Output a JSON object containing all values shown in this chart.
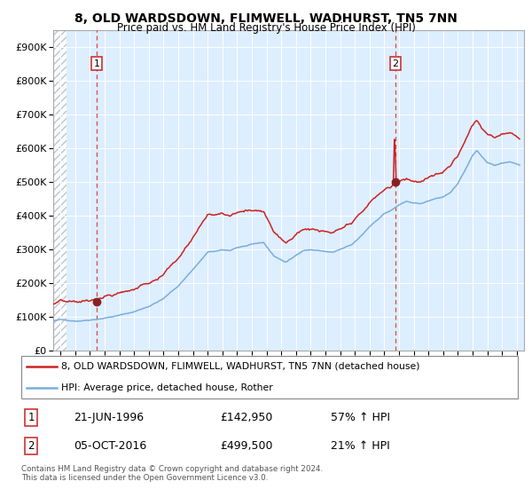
{
  "title": "8, OLD WARDSDOWN, FLIMWELL, WADHURST, TN5 7NN",
  "subtitle": "Price paid vs. HM Land Registry's House Price Index (HPI)",
  "legend_line1": "8, OLD WARDSDOWN, FLIMWELL, WADHURST, TN5 7NN (detached house)",
  "legend_line2": "HPI: Average price, detached house, Rother",
  "annotation1_date": "21-JUN-1996",
  "annotation1_price": "£142,950",
  "annotation1_hpi": "57% ↑ HPI",
  "annotation2_date": "05-OCT-2016",
  "annotation2_price": "£499,500",
  "annotation2_hpi": "21% ↑ HPI",
  "footer1": "Contains HM Land Registry data © Crown copyright and database right 2024.",
  "footer2": "This data is licensed under the Open Government Licence v3.0.",
  "sale1_date_num": 1996.47,
  "sale1_price": 142950,
  "sale2_date_num": 2016.76,
  "sale2_price": 499500,
  "hpi_color": "#7aaddc",
  "price_color": "#cc2222",
  "marker_color": "#882222",
  "bg_color": "#ddeeff",
  "ylim_max": 950000,
  "xlim_min": 1993.5,
  "xlim_max": 2025.5
}
